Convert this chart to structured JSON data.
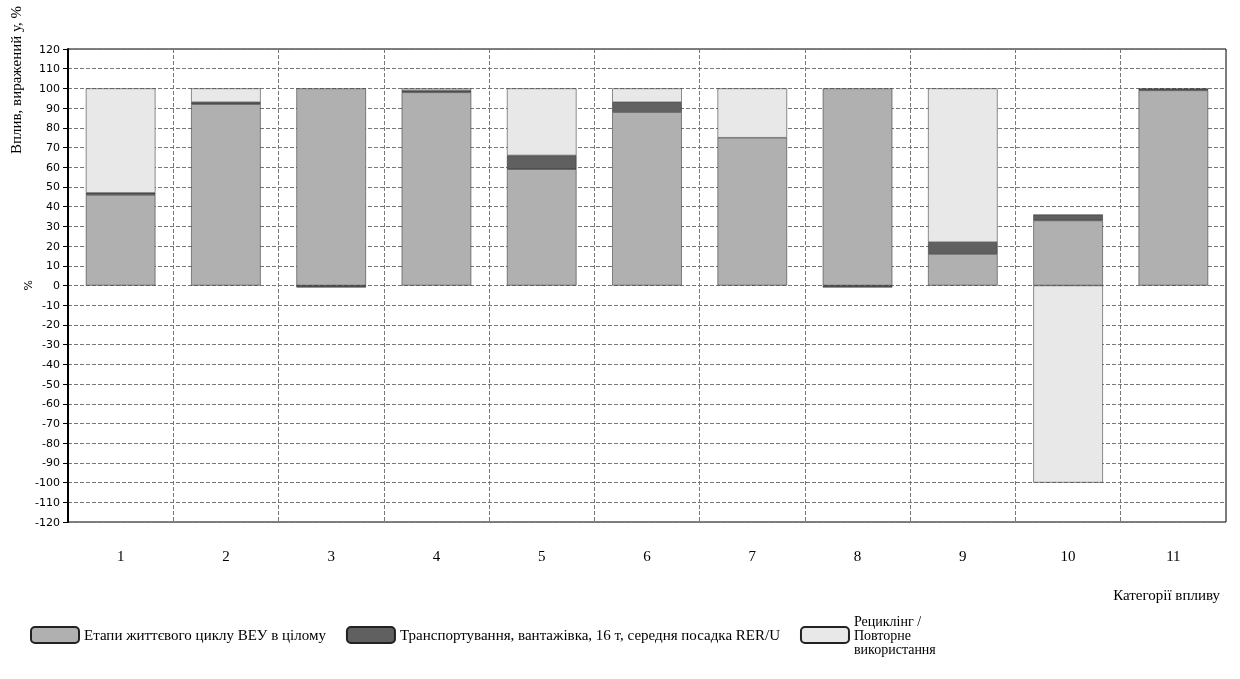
{
  "chart_data": {
    "type": "bar",
    "stacked": true,
    "ylabel": "Вплив, виражений у, %",
    "xlabel": "Категорії впливу",
    "annotations": [
      "%"
    ],
    "categories": [
      "1",
      "2",
      "3",
      "4",
      "5",
      "6",
      "7",
      "8",
      "9",
      "10",
      "11"
    ],
    "series": [
      {
        "name": "Етапи життєвого циклу ВЕУ в цілому",
        "color": "#b0b0b0",
        "values": [
          46,
          92,
          100,
          98,
          59,
          88,
          75,
          100,
          16,
          33,
          99
        ]
      },
      {
        "name": "Транспортування, вантажівка, 16 т, середня посадка RER/U",
        "color": "#606060",
        "values": [
          1,
          1,
          -1,
          1,
          7,
          5,
          null,
          -1,
          6,
          3,
          1
        ]
      },
      {
        "name": "Рециклінг / Повторне використання",
        "color": "#e8e8e8",
        "values": [
          53,
          7,
          null,
          1,
          34,
          7,
          25,
          null,
          78,
          -100,
          null
        ]
      }
    ],
    "ylim": [
      -120,
      120
    ],
    "yticks": [
      -120,
      -110,
      -100,
      -90,
      -80,
      -70,
      -60,
      -50,
      -40,
      -30,
      -20,
      -10,
      0,
      10,
      20,
      30,
      40,
      50,
      60,
      70,
      80,
      90,
      100,
      110,
      120
    ],
    "grid": true,
    "legend": "bottom"
  }
}
